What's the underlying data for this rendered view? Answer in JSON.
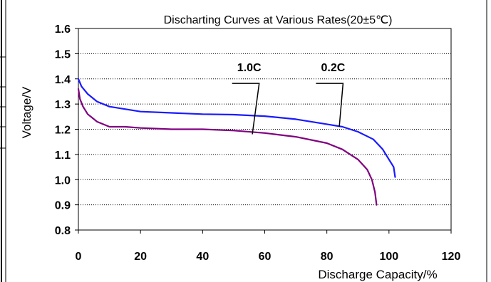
{
  "chart_data": {
    "type": "line",
    "title": "Discharting Curves at Various Rates(20±5℃)",
    "xlabel": "Discharge Capacity/%",
    "ylabel": "Voltage/V",
    "xlim": [
      0,
      120
    ],
    "ylim": [
      0.8,
      1.6
    ],
    "x_ticks": [
      0,
      20,
      40,
      60,
      80,
      100,
      120
    ],
    "y_ticks": [
      0.8,
      0.9,
      1.0,
      1.1,
      1.2,
      1.3,
      1.4,
      1.5,
      1.6
    ],
    "x_tick_labels": [
      "0",
      "20",
      "40",
      "60",
      "80",
      "100",
      "120"
    ],
    "y_tick_labels": [
      "0.8",
      "0.9",
      "1.0",
      "1.1",
      "1.2",
      "1.3",
      "1.4",
      "1.5",
      "1.6"
    ],
    "grid": "horizontal-dotted",
    "series": [
      {
        "name": "0.2C",
        "color": "#1a1aff",
        "points": [
          [
            0,
            1.4
          ],
          [
            1,
            1.37
          ],
          [
            3,
            1.34
          ],
          [
            6,
            1.31
          ],
          [
            10,
            1.29
          ],
          [
            15,
            1.28
          ],
          [
            20,
            1.27
          ],
          [
            30,
            1.265
          ],
          [
            40,
            1.26
          ],
          [
            50,
            1.258
          ],
          [
            60,
            1.252
          ],
          [
            70,
            1.24
          ],
          [
            80,
            1.22
          ],
          [
            85,
            1.21
          ],
          [
            90,
            1.19
          ],
          [
            95,
            1.16
          ],
          [
            98,
            1.12
          ],
          [
            100,
            1.08
          ],
          [
            101.5,
            1.05
          ],
          [
            102,
            1.01
          ]
        ]
      },
      {
        "name": "1.0C",
        "color": "#800080",
        "points": [
          [
            0,
            1.36
          ],
          [
            0.5,
            1.32
          ],
          [
            1.5,
            1.29
          ],
          [
            3,
            1.26
          ],
          [
            6,
            1.23
          ],
          [
            10,
            1.21
          ],
          [
            15,
            1.21
          ],
          [
            20,
            1.205
          ],
          [
            30,
            1.2
          ],
          [
            40,
            1.2
          ],
          [
            50,
            1.195
          ],
          [
            60,
            1.185
          ],
          [
            70,
            1.17
          ],
          [
            80,
            1.145
          ],
          [
            85,
            1.12
          ],
          [
            90,
            1.08
          ],
          [
            93,
            1.04
          ],
          [
            94.5,
            1.0
          ],
          [
            95.5,
            0.95
          ],
          [
            96,
            0.9
          ]
        ]
      }
    ],
    "annotations": [
      {
        "text": "1.0C",
        "series": "1.0C",
        "label_x": 55,
        "label_y": 1.43,
        "tip_x": 56,
        "tip_y": 1.18
      },
      {
        "text": "0.2C",
        "series": "0.2C",
        "label_x": 82,
        "label_y": 1.43,
        "tip_x": 84,
        "tip_y": 1.21
      }
    ]
  }
}
